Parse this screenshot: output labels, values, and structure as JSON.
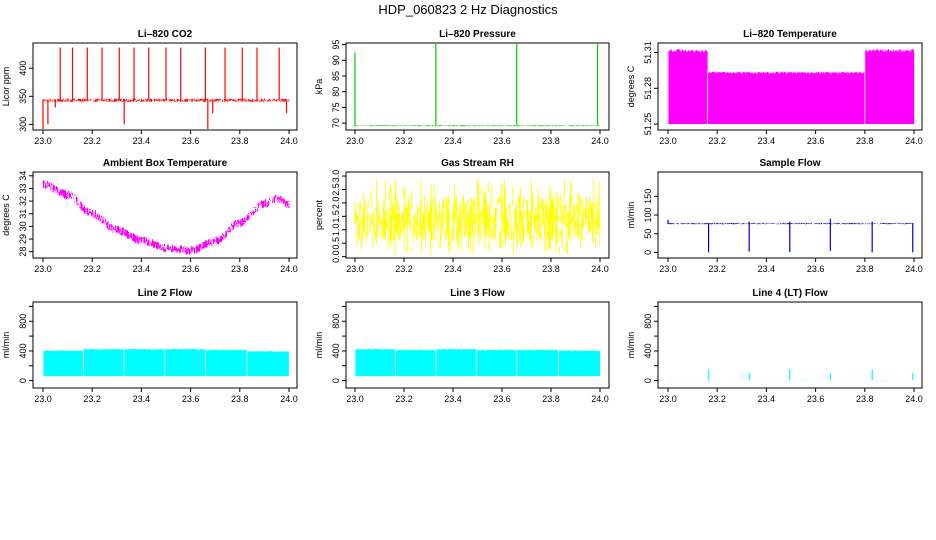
{
  "figure": {
    "title": "HDP_060823  2 Hz Diagnostics"
  },
  "chart_data": [
    {
      "type": "line",
      "title": "Li–820 CO2",
      "xlabel": "",
      "ylabel": "Licor ppm",
      "xlim": [
        23.0,
        24.0
      ],
      "ylim": [
        290,
        445
      ],
      "yticks": [
        300,
        350,
        400
      ],
      "xticks": [
        23.0,
        23.2,
        23.4,
        23.6,
        23.8,
        24.0
      ],
      "xtick_labels": [
        "23.0",
        "23.2",
        "23.4",
        "23.6",
        "23.8",
        "24.0"
      ],
      "color": "#ff0000",
      "series": [
        {
          "pattern": "noisy",
          "base": 343,
          "amp": 3,
          "spikes": [
            {
              "x": 23.0,
              "y": 288
            },
            {
              "x": 23.02,
              "y": 300
            },
            {
              "x": 23.05,
              "y": 330
            },
            {
              "x": 23.07,
              "y": 437
            },
            {
              "x": 23.12,
              "y": 437
            },
            {
              "x": 23.18,
              "y": 437
            },
            {
              "x": 23.24,
              "y": 437
            },
            {
              "x": 23.31,
              "y": 437
            },
            {
              "x": 23.33,
              "y": 300
            },
            {
              "x": 23.37,
              "y": 437
            },
            {
              "x": 23.43,
              "y": 437
            },
            {
              "x": 23.5,
              "y": 437
            },
            {
              "x": 23.56,
              "y": 437
            },
            {
              "x": 23.66,
              "y": 437
            },
            {
              "x": 23.67,
              "y": 285
            },
            {
              "x": 23.69,
              "y": 320
            },
            {
              "x": 23.74,
              "y": 437
            },
            {
              "x": 23.81,
              "y": 437
            },
            {
              "x": 23.87,
              "y": 437
            },
            {
              "x": 23.96,
              "y": 437
            },
            {
              "x": 23.99,
              "y": 320
            }
          ]
        }
      ]
    },
    {
      "type": "line",
      "title": "Li–820 Pressure",
      "xlabel": "",
      "ylabel": "kPa",
      "xlim": [
        23.0,
        24.0
      ],
      "ylim": [
        67.8,
        95.5
      ],
      "yticks": [
        70,
        75,
        80,
        85,
        90,
        95
      ],
      "xticks": [
        23.0,
        23.2,
        23.4,
        23.6,
        23.8,
        24.0
      ],
      "xtick_labels": [
        "23.0",
        "23.2",
        "23.4",
        "23.6",
        "23.8",
        "24.0"
      ],
      "color": "#00cc00",
      "series": [
        {
          "pattern": "noisy",
          "base": 69.2,
          "amp": 0.2,
          "spikes": [
            {
              "x": 23.0,
              "y": 92.5
            },
            {
              "x": 23.33,
              "y": 95.2
            },
            {
              "x": 23.66,
              "y": 95.2
            },
            {
              "x": 23.99,
              "y": 95.2
            }
          ]
        }
      ]
    },
    {
      "type": "line",
      "title": "Li–820 Temperature",
      "xlabel": "",
      "ylabel": "degrees C",
      "xlim": [
        23.0,
        24.0
      ],
      "ylim": [
        51.245,
        51.318
      ],
      "yticks": [
        51.25,
        51.28,
        51.31
      ],
      "xticks": [
        23.0,
        23.2,
        23.4,
        23.6,
        23.8,
        24.0
      ],
      "xtick_labels": [
        "23.0",
        "23.2",
        "23.4",
        "23.6",
        "23.8",
        "24.0"
      ],
      "color": "#ff00ff",
      "series": [
        {
          "pattern": "band",
          "segments": [
            {
              "x0": 23.0,
              "x1": 23.16,
              "lo": 51.25,
              "hi": 51.313
            },
            {
              "x0": 23.16,
              "x1": 23.8,
              "lo": 51.25,
              "hi": 51.294
            },
            {
              "x0": 23.8,
              "x1": 24.0,
              "lo": 51.25,
              "hi": 51.313
            }
          ]
        }
      ]
    },
    {
      "type": "line",
      "title": "Ambient Box Temperature",
      "xlabel": "",
      "ylabel": "degrees C",
      "xlim": [
        23.0,
        24.0
      ],
      "ylim": [
        27.5,
        34.3
      ],
      "yticks": [
        28,
        29,
        30,
        31,
        32,
        33,
        34
      ],
      "xticks": [
        23.0,
        23.2,
        23.4,
        23.6,
        23.8,
        24.0
      ],
      "xtick_labels": [
        "23.0",
        "23.2",
        "23.4",
        "23.6",
        "23.8",
        "24.0"
      ],
      "color": "#ff00ff",
      "series": [
        {
          "pattern": "curve",
          "amp": 0.35,
          "points": [
            {
              "x": 23.0,
              "y": 33.3
            },
            {
              "x": 23.1,
              "y": 32.5
            },
            {
              "x": 23.2,
              "y": 31.0
            },
            {
              "x": 23.3,
              "y": 29.7
            },
            {
              "x": 23.4,
              "y": 28.9
            },
            {
              "x": 23.5,
              "y": 28.3
            },
            {
              "x": 23.6,
              "y": 28.1
            },
            {
              "x": 23.7,
              "y": 28.8
            },
            {
              "x": 23.8,
              "y": 30.3
            },
            {
              "x": 23.9,
              "y": 31.8
            },
            {
              "x": 23.96,
              "y": 32.2
            },
            {
              "x": 24.0,
              "y": 31.7
            }
          ]
        }
      ]
    },
    {
      "type": "line",
      "title": "Gas Stream RH",
      "xlabel": "",
      "ylabel": "percent",
      "xlim": [
        23.0,
        24.0
      ],
      "ylim": [
        -0.05,
        3.15
      ],
      "yticks": [
        0.0,
        0.5,
        1.0,
        1.5,
        2.0,
        2.5,
        3.0
      ],
      "xticks": [
        23.0,
        23.2,
        23.4,
        23.6,
        23.8,
        24.0
      ],
      "xtick_labels": [
        "23.0",
        "23.2",
        "23.4",
        "23.6",
        "23.8",
        "24.0"
      ],
      "color": "#ffff00",
      "series": [
        {
          "pattern": "noisy",
          "base": 1.4,
          "amp": 0.85,
          "wild": 0.4,
          "wild_lo": 0.05,
          "wild_hi": 2.9,
          "spikes": []
        }
      ]
    },
    {
      "type": "line",
      "title": "Sample Flow",
      "xlabel": "",
      "ylabel": "ml/min",
      "xlim": [
        23.0,
        24.0
      ],
      "ylim": [
        -15,
        215
      ],
      "yticks": [
        0,
        50,
        100,
        150
      ],
      "xticks": [
        23.0,
        23.2,
        23.4,
        23.6,
        23.8,
        24.0
      ],
      "xtick_labels": [
        "23.0",
        "23.2",
        "23.4",
        "23.6",
        "23.8",
        "24.0"
      ],
      "color": "#0000cc",
      "series": [
        {
          "pattern": "noisy",
          "base": 77,
          "amp": 2,
          "spikes": [
            {
              "x": 23.0,
              "y": 87
            },
            {
              "x": 23.165,
              "y": 0
            },
            {
              "x": 23.33,
              "y": 2
            },
            {
              "x": 23.33,
              "y": 82
            },
            {
              "x": 23.495,
              "y": 1
            },
            {
              "x": 23.495,
              "y": 82
            },
            {
              "x": 23.66,
              "y": 4
            },
            {
              "x": 23.66,
              "y": 90
            },
            {
              "x": 23.83,
              "y": 0
            },
            {
              "x": 23.83,
              "y": 82
            },
            {
              "x": 23.995,
              "y": 0
            }
          ]
        }
      ]
    },
    {
      "type": "line",
      "title": "Line 2 Flow",
      "xlabel": "",
      "ylabel": "ml/min",
      "xlim": [
        23.0,
        24.0
      ],
      "ylim": [
        -100,
        1060
      ],
      "yticks": [
        0,
        200,
        400,
        600,
        800,
        1000
      ],
      "yticklabels": [
        "0",
        "",
        "400",
        "",
        "800",
        ""
      ],
      "xticks": [
        23.0,
        23.2,
        23.4,
        23.6,
        23.8,
        24.0
      ],
      "xtick_labels": [
        "23.0",
        "23.2",
        "23.4",
        "23.6",
        "23.8",
        "24.0"
      ],
      "color": "#00ffff",
      "series": [
        {
          "pattern": "band",
          "segments": [
            {
              "x0": 23.0,
              "x1": 23.165,
              "lo": 60,
              "hi": 410
            },
            {
              "x0": 23.165,
              "x1": 23.33,
              "lo": 60,
              "hi": 430
            },
            {
              "x0": 23.33,
              "x1": 23.495,
              "lo": 60,
              "hi": 430
            },
            {
              "x0": 23.495,
              "x1": 23.66,
              "lo": 60,
              "hi": 430
            },
            {
              "x0": 23.66,
              "x1": 23.83,
              "lo": 60,
              "hi": 420
            },
            {
              "x0": 23.83,
              "x1": 24.0,
              "lo": 60,
              "hi": 400
            }
          ]
        }
      ]
    },
    {
      "type": "line",
      "title": "Line 3 Flow",
      "xlabel": "",
      "ylabel": "ml/min",
      "xlim": [
        23.0,
        24.0
      ],
      "ylim": [
        -100,
        1060
      ],
      "yticks": [
        0,
        200,
        400,
        600,
        800,
        1000
      ],
      "yticklabels": [
        "0",
        "",
        "400",
        "",
        "800",
        ""
      ],
      "xticks": [
        23.0,
        23.2,
        23.4,
        23.6,
        23.8,
        24.0
      ],
      "xtick_labels": [
        "23.0",
        "23.2",
        "23.4",
        "23.6",
        "23.8",
        "24.0"
      ],
      "color": "#00ffff",
      "series": [
        {
          "pattern": "band",
          "segments": [
            {
              "x0": 23.0,
              "x1": 23.165,
              "lo": 60,
              "hi": 430
            },
            {
              "x0": 23.165,
              "x1": 23.33,
              "lo": 60,
              "hi": 420
            },
            {
              "x0": 23.33,
              "x1": 23.495,
              "lo": 60,
              "hi": 430
            },
            {
              "x0": 23.495,
              "x1": 23.66,
              "lo": 60,
              "hi": 420
            },
            {
              "x0": 23.66,
              "x1": 23.83,
              "lo": 60,
              "hi": 420
            },
            {
              "x0": 23.83,
              "x1": 24.0,
              "lo": 60,
              "hi": 410
            }
          ]
        }
      ]
    },
    {
      "type": "line",
      "title": "Line 4 (LT) Flow",
      "xlabel": "",
      "ylabel": "ml/min",
      "xlim": [
        23.0,
        24.0
      ],
      "ylim": [
        -100,
        1060
      ],
      "yticks": [
        0,
        200,
        400,
        600,
        800,
        1000
      ],
      "yticklabels": [
        "0",
        "",
        "400",
        "",
        "800",
        ""
      ],
      "xticks": [
        23.0,
        23.2,
        23.4,
        23.6,
        23.8,
        24.0
      ],
      "xtick_labels": [
        "23.0",
        "23.2",
        "23.4",
        "23.6",
        "23.8",
        "24.0"
      ],
      "color": "#00ffff",
      "series": [
        {
          "pattern": "noisy",
          "base": 5,
          "amp": 2,
          "spikes": [
            {
              "x": 23.165,
              "y": 150
            },
            {
              "x": 23.33,
              "y": 100
            },
            {
              "x": 23.495,
              "y": 150
            },
            {
              "x": 23.66,
              "y": 100
            },
            {
              "x": 23.83,
              "y": 150
            },
            {
              "x": 23.995,
              "y": 100
            }
          ]
        }
      ]
    }
  ]
}
